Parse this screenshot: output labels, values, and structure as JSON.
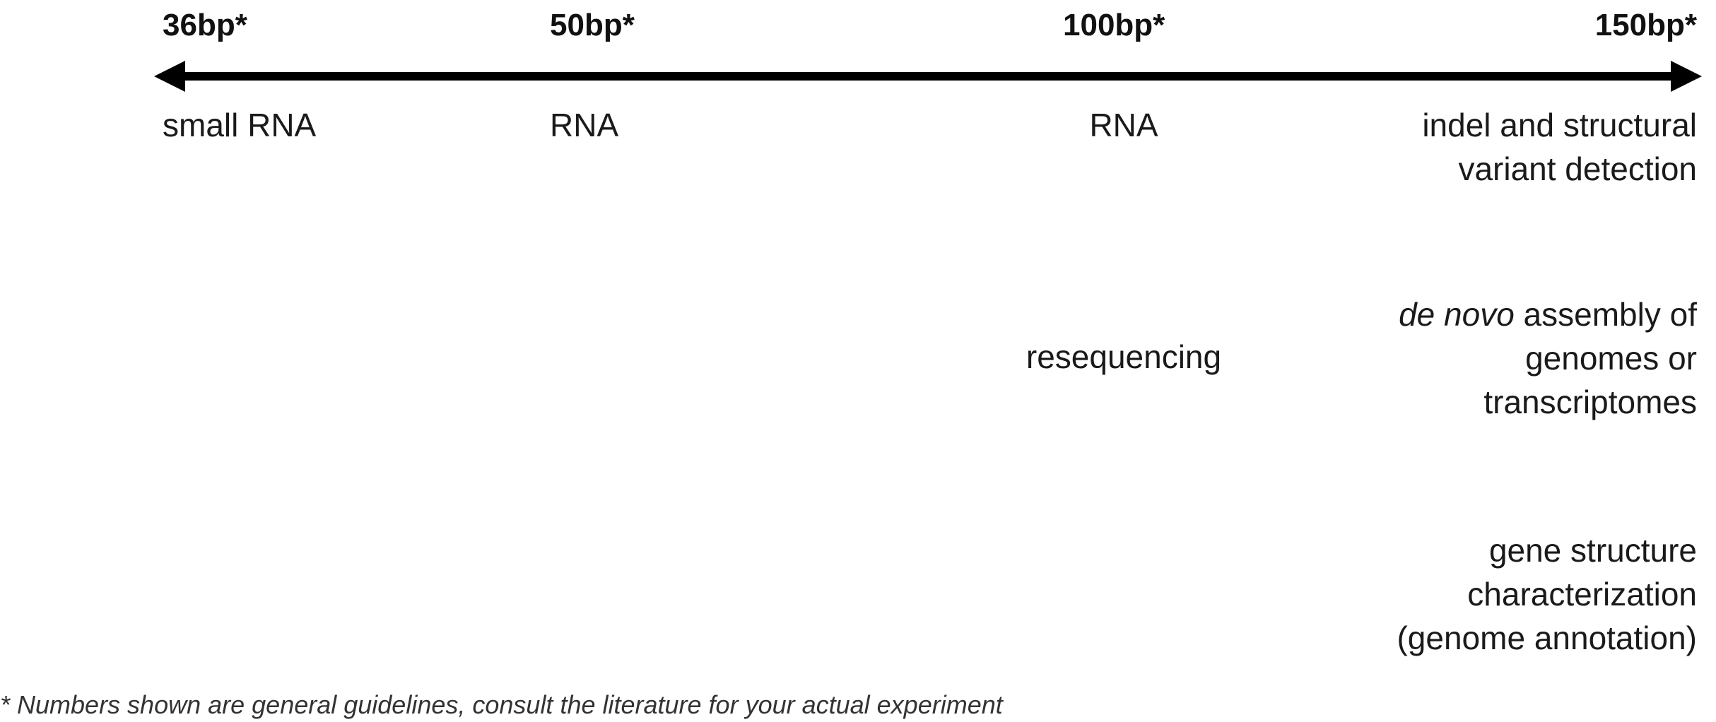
{
  "ticks": {
    "t36": "36bp*",
    "t50": "50bp*",
    "t100": "100bp*",
    "t150": "150bp*"
  },
  "applications": {
    "small_rna": "small RNA",
    "rna_50": "RNA",
    "rna_100": "RNA",
    "indel_line1": "indel and structural",
    "indel_line2": "variant detection",
    "resequencing": "resequencing",
    "denovo_italic": "de novo",
    "denovo_line1_rest": " assembly of",
    "denovo_line2": "genomes or",
    "denovo_line3": "transcriptomes",
    "gene_line1": "gene structure",
    "gene_line2": "characterization",
    "gene_line3": "(genome annotation)"
  },
  "footnote": "* Numbers shown are general guidelines, consult the literature for your actual experiment",
  "colors": {
    "arrow": "#000000",
    "text": "#1a1a1a"
  }
}
